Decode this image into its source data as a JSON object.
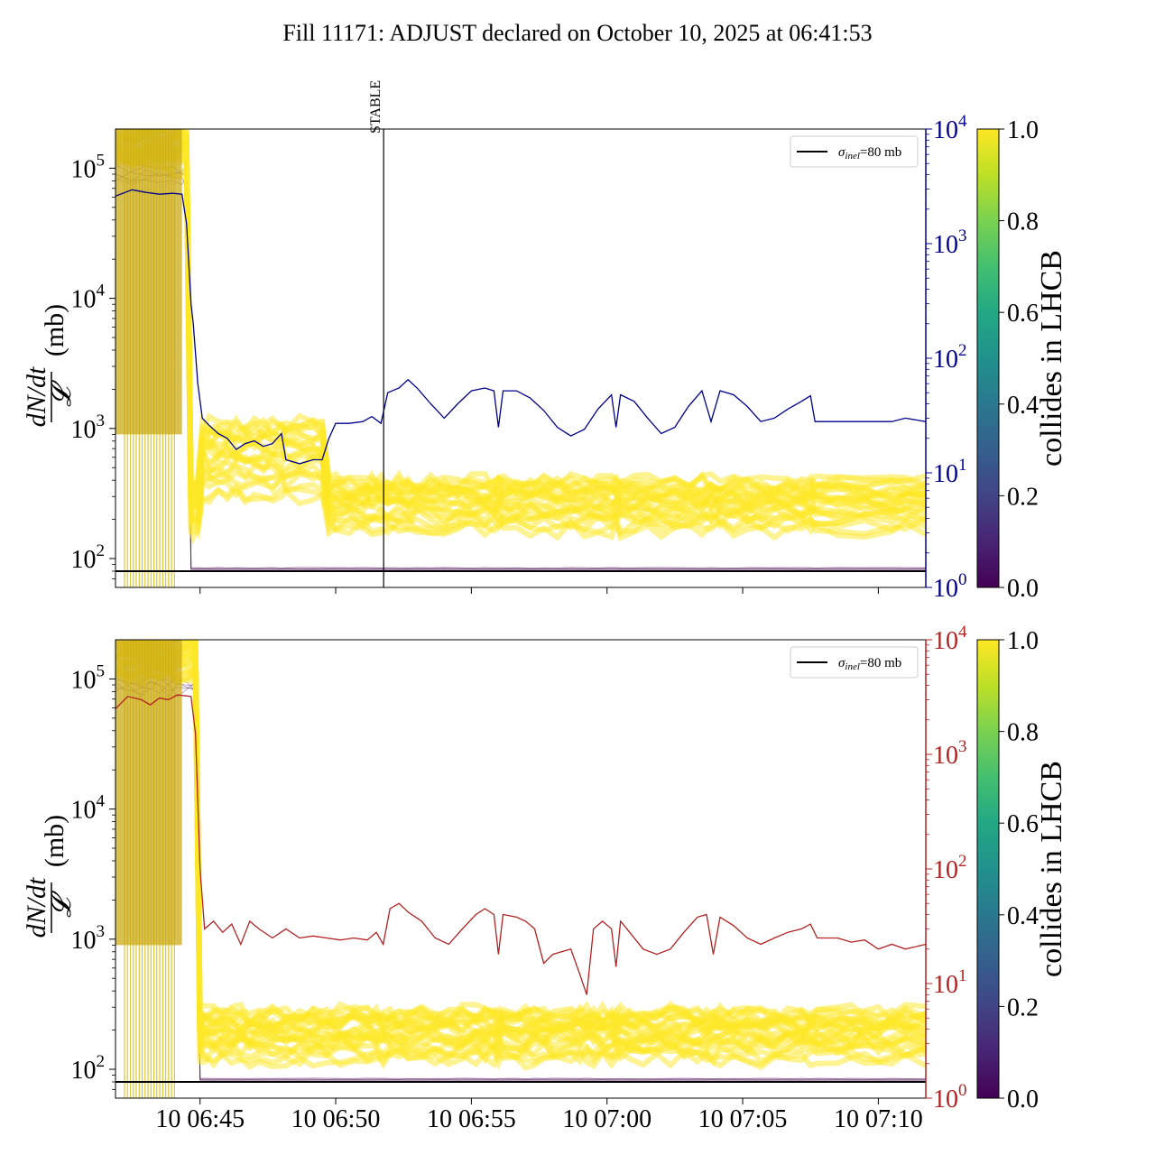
{
  "title": "Fill 11171: ADJUST declared on October 10, 2025 at 06:41:53",
  "colors": {
    "rate_top": "#00008b",
    "rate_bottom": "#b22222",
    "sigma_line": "#000000",
    "stable_line": "#000000",
    "colliding": "#fde725",
    "non_colliding": "#440154"
  },
  "chart_data": [
    {
      "type": "line",
      "panel": "top",
      "ylabel_left": "dN/dt / 𝓛 (mb)",
      "ylabel_left_num": "dN/dt",
      "ylabel_left_den": "𝓛",
      "ylabel_left_unit": "(mb)",
      "yscale_left": "log",
      "ylim_left": [
        60,
        200000
      ],
      "yticks_left": [
        {
          "value": 100,
          "base": "10",
          "exp": "2"
        },
        {
          "value": 1000,
          "base": "10",
          "exp": "3"
        },
        {
          "value": 10000,
          "base": "10",
          "exp": "4"
        },
        {
          "value": 100000,
          "base": "10",
          "exp": "5"
        }
      ],
      "yscale_right": "log",
      "ylim_right": [
        1,
        10000
      ],
      "yticks_right": [
        {
          "value": 1,
          "base": "10",
          "exp": "0"
        },
        {
          "value": 10,
          "base": "10",
          "exp": "1"
        },
        {
          "value": 100,
          "base": "10",
          "exp": "2"
        },
        {
          "value": 1000,
          "base": "10",
          "exp": "3"
        },
        {
          "value": 10000,
          "base": "10",
          "exp": "4"
        }
      ],
      "xlim": [
        "06:41:53",
        "07:11:45"
      ],
      "xtick_labels_shown": false,
      "legend": {
        "placement": "top-right",
        "entries": [
          {
            "label_sigma": "σ",
            "label_sub": "inel",
            "label_rest": "=80 mb"
          }
        ]
      },
      "sigma_inel_mb": 80,
      "annotations": [
        {
          "text": "STABLE",
          "time": "06:51:46"
        }
      ],
      "colorbar": {
        "label": "collides in LHCB",
        "range": [
          0,
          1
        ],
        "ticks": [
          "0.0",
          "0.2",
          "0.4",
          "0.6",
          "0.8",
          "1.0"
        ]
      },
      "series": [
        {
          "name": "rate (right axis)",
          "axis": "right",
          "points": [
            [
              "06:41:53",
              2600
            ],
            [
              "06:42:30",
              2950
            ],
            [
              "06:43:00",
              2800
            ],
            [
              "06:43:30",
              2700
            ],
            [
              "06:44:00",
              2750
            ],
            [
              "06:44:20",
              2700
            ],
            [
              "06:44:30",
              1500
            ],
            [
              "06:44:40",
              300
            ],
            [
              "06:44:45",
              200
            ],
            [
              "06:44:55",
              60
            ],
            [
              "06:45:05",
              30
            ],
            [
              "06:45:20",
              26
            ],
            [
              "06:45:40",
              22
            ],
            [
              "06:46:00",
              20
            ],
            [
              "06:46:20",
              16
            ],
            [
              "06:46:40",
              18
            ],
            [
              "06:47:00",
              19
            ],
            [
              "06:47:20",
              17
            ],
            [
              "06:47:40",
              18
            ],
            [
              "06:48:00",
              22
            ],
            [
              "06:48:10",
              13
            ],
            [
              "06:48:40",
              12
            ],
            [
              "06:49:10",
              13
            ],
            [
              "06:49:30",
              13
            ],
            [
              "06:49:45",
              20
            ],
            [
              "06:50:00",
              27
            ],
            [
              "06:50:30",
              27
            ],
            [
              "06:51:00",
              28
            ],
            [
              "06:51:20",
              31
            ],
            [
              "06:51:40",
              27
            ],
            [
              "06:51:55",
              50
            ],
            [
              "06:52:20",
              55
            ],
            [
              "06:52:40",
              65
            ],
            [
              "06:53:00",
              55
            ],
            [
              "06:53:30",
              40
            ],
            [
              "06:54:00",
              30
            ],
            [
              "06:54:30",
              40
            ],
            [
              "06:55:00",
              52
            ],
            [
              "06:55:30",
              55
            ],
            [
              "06:55:50",
              52
            ],
            [
              "06:56:00",
              25
            ],
            [
              "06:56:10",
              52
            ],
            [
              "06:56:40",
              52
            ],
            [
              "06:57:10",
              45
            ],
            [
              "06:57:40",
              35
            ],
            [
              "06:58:10",
              25
            ],
            [
              "06:58:40",
              21
            ],
            [
              "06:59:10",
              24
            ],
            [
              "06:59:40",
              36
            ],
            [
              "07:00:10",
              48
            ],
            [
              "07:00:20",
              25
            ],
            [
              "07:00:30",
              48
            ],
            [
              "07:01:00",
              42
            ],
            [
              "07:01:30",
              30
            ],
            [
              "07:02:00",
              22
            ],
            [
              "07:02:30",
              25
            ],
            [
              "07:03:00",
              38
            ],
            [
              "07:03:30",
              52
            ],
            [
              "07:03:50",
              28
            ],
            [
              "07:04:10",
              52
            ],
            [
              "07:04:40",
              48
            ],
            [
              "07:05:10",
              38
            ],
            [
              "07:05:40",
              28
            ],
            [
              "07:06:10",
              30
            ],
            [
              "07:06:40",
              36
            ],
            [
              "07:07:10",
              42
            ],
            [
              "07:07:30",
              47
            ],
            [
              "07:07:40",
              28
            ],
            [
              "07:08:30",
              28
            ],
            [
              "07:09:30",
              28
            ],
            [
              "07:10:30",
              28
            ],
            [
              "07:11:00",
              30
            ],
            [
              "07:11:45",
              28
            ]
          ]
        },
        {
          "name": "σinel=80 mb",
          "axis": "left",
          "points": [
            [
              "06:41:53",
              80
            ],
            [
              "07:11:45",
              80
            ]
          ]
        }
      ]
    },
    {
      "type": "line",
      "panel": "bottom",
      "ylabel_left": "dN/dt / 𝓛 (mb)",
      "ylabel_left_num": "dN/dt",
      "ylabel_left_den": "𝓛",
      "ylabel_left_unit": "(mb)",
      "yscale_left": "log",
      "ylim_left": [
        60,
        200000
      ],
      "yticks_left": [
        {
          "value": 100,
          "base": "10",
          "exp": "2"
        },
        {
          "value": 1000,
          "base": "10",
          "exp": "3"
        },
        {
          "value": 10000,
          "base": "10",
          "exp": "4"
        },
        {
          "value": 100000,
          "base": "10",
          "exp": "5"
        }
      ],
      "yscale_right": "log",
      "ylim_right": [
        1,
        10000
      ],
      "yticks_right": [
        {
          "value": 1,
          "base": "10",
          "exp": "0"
        },
        {
          "value": 10,
          "base": "10",
          "exp": "1"
        },
        {
          "value": 100,
          "base": "10",
          "exp": "2"
        },
        {
          "value": 1000,
          "base": "10",
          "exp": "3"
        },
        {
          "value": 10000,
          "base": "10",
          "exp": "4"
        }
      ],
      "xlim": [
        "06:41:53",
        "07:11:45"
      ],
      "xticks": [
        {
          "label": "10 06:45",
          "time": "06:45:00"
        },
        {
          "label": "10 06:50",
          "time": "06:50:00"
        },
        {
          "label": "10 06:55",
          "time": "06:55:00"
        },
        {
          "label": "10 07:00",
          "time": "07:00:00"
        },
        {
          "label": "10 07:05",
          "time": "07:05:00"
        },
        {
          "label": "10 07:10",
          "time": "07:10:00"
        }
      ],
      "legend": {
        "placement": "top-right",
        "entries": [
          {
            "label_sigma": "σ",
            "label_sub": "inel",
            "label_rest": "=80 mb"
          }
        ]
      },
      "sigma_inel_mb": 80,
      "colorbar": {
        "label": "collides in LHCB",
        "range": [
          0,
          1
        ],
        "ticks": [
          "0.0",
          "0.2",
          "0.4",
          "0.6",
          "0.8",
          "1.0"
        ]
      },
      "series": [
        {
          "name": "rate (right axis)",
          "axis": "right",
          "points": [
            [
              "06:41:53",
              2500
            ],
            [
              "06:42:20",
              3200
            ],
            [
              "06:42:50",
              3000
            ],
            [
              "06:43:10",
              2700
            ],
            [
              "06:43:30",
              3100
            ],
            [
              "06:43:50",
              3000
            ],
            [
              "06:44:10",
              3300
            ],
            [
              "06:44:40",
              3200
            ],
            [
              "06:44:50",
              1500
            ],
            [
              "06:45:00",
              100
            ],
            [
              "06:45:10",
              30
            ],
            [
              "06:45:30",
              35
            ],
            [
              "06:45:50",
              28
            ],
            [
              "06:46:10",
              33
            ],
            [
              "06:46:30",
              22
            ],
            [
              "06:46:50",
              35
            ],
            [
              "06:47:10",
              30
            ],
            [
              "06:47:40",
              25
            ],
            [
              "06:48:10",
              30
            ],
            [
              "06:48:40",
              25
            ],
            [
              "06:49:10",
              26
            ],
            [
              "06:49:40",
              25
            ],
            [
              "06:50:10",
              24
            ],
            [
              "06:50:40",
              25
            ],
            [
              "06:51:10",
              24
            ],
            [
              "06:51:30",
              28
            ],
            [
              "06:51:45",
              22
            ],
            [
              "06:52:00",
              45
            ],
            [
              "06:52:20",
              50
            ],
            [
              "06:52:40",
              42
            ],
            [
              "06:53:10",
              35
            ],
            [
              "06:53:40",
              25
            ],
            [
              "06:54:10",
              22
            ],
            [
              "06:54:40",
              30
            ],
            [
              "06:55:10",
              40
            ],
            [
              "06:55:30",
              45
            ],
            [
              "06:55:50",
              40
            ],
            [
              "06:56:00",
              18
            ],
            [
              "06:56:10",
              40
            ],
            [
              "06:56:40",
              38
            ],
            [
              "06:57:00",
              35
            ],
            [
              "06:57:20",
              30
            ],
            [
              "06:57:40",
              15
            ],
            [
              "06:58:00",
              18
            ],
            [
              "06:58:40",
              20
            ],
            [
              "06:59:00",
              12
            ],
            [
              "06:59:15",
              8
            ],
            [
              "06:59:30",
              30
            ],
            [
              "06:59:50",
              35
            ],
            [
              "07:00:10",
              30
            ],
            [
              "07:00:20",
              14
            ],
            [
              "07:00:30",
              35
            ],
            [
              "07:00:50",
              28
            ],
            [
              "07:01:20",
              20
            ],
            [
              "07:01:50",
              18
            ],
            [
              "07:02:20",
              20
            ],
            [
              "07:02:50",
              28
            ],
            [
              "07:03:20",
              38
            ],
            [
              "07:03:40",
              40
            ],
            [
              "07:03:55",
              18
            ],
            [
              "07:04:10",
              38
            ],
            [
              "07:04:40",
              32
            ],
            [
              "07:05:10",
              25
            ],
            [
              "07:05:40",
              22
            ],
            [
              "07:06:10",
              25
            ],
            [
              "07:06:40",
              28
            ],
            [
              "07:07:10",
              30
            ],
            [
              "07:07:30",
              33
            ],
            [
              "07:07:45",
              25
            ],
            [
              "07:08:30",
              25
            ],
            [
              "07:09:00",
              23
            ],
            [
              "07:09:30",
              24
            ],
            [
              "07:10:00",
              20
            ],
            [
              "07:10:30",
              22
            ],
            [
              "07:11:00",
              20
            ],
            [
              "07:11:45",
              22
            ]
          ]
        },
        {
          "name": "σinel=80 mb",
          "axis": "left",
          "points": [
            [
              "06:41:53",
              80
            ],
            [
              "07:11:45",
              80
            ]
          ]
        }
      ]
    }
  ]
}
